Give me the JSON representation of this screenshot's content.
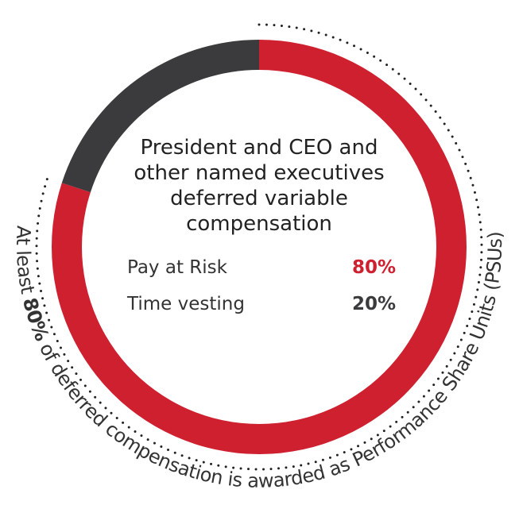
{
  "chart_data": {
    "type": "donut",
    "title": "President and CEO and other named executives deferred variable compensation",
    "series": [
      {
        "name": "Pay at Risk",
        "color": "#cf2030",
        "values": [
          80
        ],
        "value_labels": [
          "80%"
        ]
      },
      {
        "name": "Time vesting",
        "color": "#3b3b3d",
        "values": [
          20
        ],
        "value_labels": [
          "20%"
        ]
      }
    ],
    "annotation": [
      "At least",
      "80%",
      "of deferred compensation is awarded as Performance Share Units (PSUs)"
    ]
  }
}
